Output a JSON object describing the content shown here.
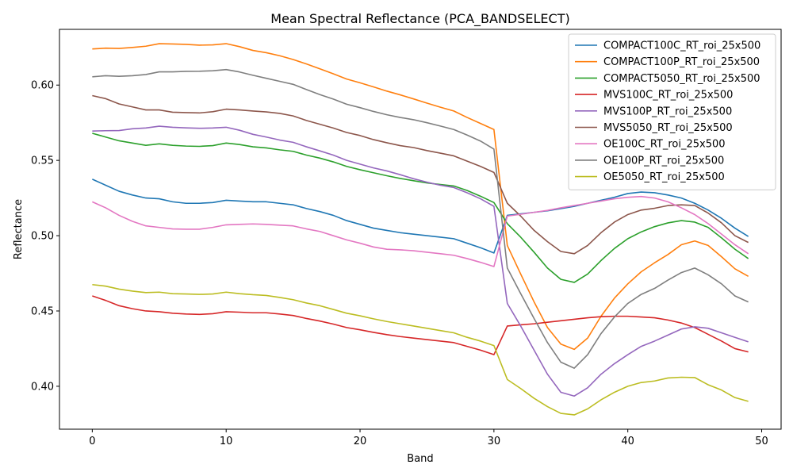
{
  "chart_data": {
    "type": "line",
    "title": "Mean Spectral Reflectance (PCA_BANDSELECT)",
    "xlabel": "Band",
    "ylabel": "Reflectance",
    "xlim": [
      -2.45,
      51.45
    ],
    "ylim": [
      0.3715,
      0.637
    ],
    "x_ticks": [
      0,
      10,
      20,
      30,
      40,
      50
    ],
    "x_tick_labels": [
      "0",
      "10",
      "20",
      "30",
      "40",
      "50"
    ],
    "y_ticks": [
      0.4,
      0.45,
      0.5,
      0.55,
      0.6
    ],
    "y_tick_labels": [
      "0.40",
      "0.45",
      "0.50",
      "0.55",
      "0.60"
    ],
    "grid": false,
    "legend_position": "top-right",
    "x": [
      0,
      1,
      2,
      3,
      4,
      5,
      6,
      7,
      8,
      9,
      10,
      11,
      12,
      13,
      14,
      15,
      16,
      17,
      18,
      19,
      20,
      21,
      22,
      23,
      24,
      25,
      26,
      27,
      28,
      29,
      30,
      31,
      32,
      33,
      34,
      35,
      36,
      37,
      38,
      39,
      40,
      41,
      42,
      43,
      44,
      45,
      46,
      47,
      48,
      49
    ],
    "series": [
      {
        "name": "COMPACT100C_RT_roi_25x500",
        "color": "#1f77b4",
        "values": [
          0.5375,
          0.5335,
          0.5295,
          0.527,
          0.525,
          0.5245,
          0.5225,
          0.5215,
          0.5215,
          0.522,
          0.5235,
          0.523,
          0.5225,
          0.5225,
          0.5215,
          0.5205,
          0.518,
          0.516,
          0.5135,
          0.51,
          0.5075,
          0.505,
          0.5035,
          0.502,
          0.501,
          0.5,
          0.499,
          0.498,
          0.495,
          0.492,
          0.4885,
          0.5135,
          0.5145,
          0.5155,
          0.5165,
          0.518,
          0.5195,
          0.5215,
          0.5235,
          0.5255,
          0.528,
          0.529,
          0.5285,
          0.527,
          0.525,
          0.5215,
          0.517,
          0.5115,
          0.505,
          0.4995
        ]
      },
      {
        "name": "COMPACT100P_RT_roi_25x500",
        "color": "#ff7f0e",
        "values": [
          0.624,
          0.6245,
          0.6243,
          0.625,
          0.6258,
          0.6275,
          0.6273,
          0.627,
          0.6265,
          0.6267,
          0.6275,
          0.6255,
          0.623,
          0.6215,
          0.6195,
          0.617,
          0.614,
          0.6108,
          0.6075,
          0.604,
          0.6015,
          0.5988,
          0.596,
          0.5935,
          0.5908,
          0.588,
          0.5853,
          0.5828,
          0.5785,
          0.5745,
          0.5705,
          0.4935,
          0.4745,
          0.456,
          0.439,
          0.428,
          0.4245,
          0.432,
          0.4465,
          0.4585,
          0.468,
          0.476,
          0.482,
          0.4875,
          0.494,
          0.4965,
          0.4935,
          0.486,
          0.478,
          0.473
        ]
      },
      {
        "name": "COMPACT5050_RT_roi_25x500",
        "color": "#2ca02c",
        "values": [
          0.568,
          0.5655,
          0.563,
          0.5615,
          0.56,
          0.561,
          0.56,
          0.5595,
          0.5593,
          0.5598,
          0.5615,
          0.5605,
          0.559,
          0.5583,
          0.557,
          0.556,
          0.5535,
          0.5515,
          0.549,
          0.546,
          0.5438,
          0.5418,
          0.5398,
          0.538,
          0.5365,
          0.535,
          0.534,
          0.533,
          0.53,
          0.5262,
          0.522,
          0.508,
          0.499,
          0.489,
          0.4785,
          0.471,
          0.469,
          0.4745,
          0.4835,
          0.4915,
          0.498,
          0.5025,
          0.506,
          0.5085,
          0.51,
          0.509,
          0.5055,
          0.4985,
          0.491,
          0.4848
        ]
      },
      {
        "name": "MVS100C_RT_roi_25x500",
        "color": "#d62728",
        "values": [
          0.46,
          0.457,
          0.4535,
          0.4515,
          0.45,
          0.4495,
          0.4485,
          0.448,
          0.4477,
          0.4482,
          0.4495,
          0.4492,
          0.4488,
          0.4488,
          0.448,
          0.447,
          0.445,
          0.4433,
          0.4413,
          0.439,
          0.4375,
          0.4358,
          0.4343,
          0.433,
          0.432,
          0.431,
          0.43,
          0.429,
          0.4265,
          0.424,
          0.421,
          0.44,
          0.4408,
          0.4415,
          0.4425,
          0.4435,
          0.4445,
          0.4455,
          0.4462,
          0.4465,
          0.4465,
          0.446,
          0.4455,
          0.444,
          0.442,
          0.439,
          0.4345,
          0.43,
          0.425,
          0.4228
        ]
      },
      {
        "name": "MVS100P_RT_roi_25x500",
        "color": "#9467bd",
        "values": [
          0.5695,
          0.5697,
          0.5698,
          0.571,
          0.5715,
          0.5727,
          0.572,
          0.5716,
          0.5713,
          0.5715,
          0.572,
          0.57,
          0.5673,
          0.5655,
          0.5635,
          0.562,
          0.559,
          0.5563,
          0.5535,
          0.55,
          0.5475,
          0.545,
          0.543,
          0.5405,
          0.5378,
          0.5355,
          0.5335,
          0.532,
          0.5285,
          0.5245,
          0.5195,
          0.455,
          0.44,
          0.424,
          0.408,
          0.396,
          0.3935,
          0.399,
          0.408,
          0.415,
          0.421,
          0.4265,
          0.43,
          0.434,
          0.438,
          0.4395,
          0.4385,
          0.4355,
          0.4325,
          0.4295
        ]
      },
      {
        "name": "MVS5050_RT_roi_25x500",
        "color": "#8c564b",
        "values": [
          0.593,
          0.591,
          0.5875,
          0.5855,
          0.5835,
          0.5835,
          0.582,
          0.5817,
          0.5815,
          0.5823,
          0.584,
          0.5835,
          0.5828,
          0.5822,
          0.5812,
          0.5795,
          0.5765,
          0.574,
          0.5715,
          0.5685,
          0.5665,
          0.5638,
          0.5617,
          0.5598,
          0.5585,
          0.5565,
          0.5548,
          0.553,
          0.5495,
          0.546,
          0.542,
          0.5215,
          0.513,
          0.5035,
          0.496,
          0.4895,
          0.488,
          0.4935,
          0.502,
          0.509,
          0.514,
          0.517,
          0.5182,
          0.52,
          0.5205,
          0.52,
          0.515,
          0.5085,
          0.5,
          0.4955
        ]
      },
      {
        "name": "OE100C_RT_roi_25x500",
        "color": "#e377c2",
        "values": [
          0.5225,
          0.5185,
          0.5135,
          0.5095,
          0.5065,
          0.5055,
          0.5045,
          0.5043,
          0.5043,
          0.5055,
          0.5072,
          0.5075,
          0.5078,
          0.5075,
          0.507,
          0.5065,
          0.5045,
          0.5028,
          0.5,
          0.4972,
          0.495,
          0.4925,
          0.491,
          0.4906,
          0.49,
          0.489,
          0.488,
          0.487,
          0.4848,
          0.4823,
          0.4795,
          0.513,
          0.5142,
          0.5155,
          0.5168,
          0.5185,
          0.52,
          0.5215,
          0.523,
          0.5245,
          0.5255,
          0.526,
          0.525,
          0.5225,
          0.5185,
          0.514,
          0.508,
          0.501,
          0.494,
          0.488
        ]
      },
      {
        "name": "OE100P_RT_roi_25x500",
        "color": "#7f7f7f",
        "values": [
          0.6055,
          0.6062,
          0.6058,
          0.6062,
          0.607,
          0.6088,
          0.6088,
          0.6091,
          0.6092,
          0.6095,
          0.6103,
          0.6087,
          0.6065,
          0.6045,
          0.6025,
          0.6005,
          0.597,
          0.5937,
          0.5907,
          0.5873,
          0.585,
          0.5825,
          0.5803,
          0.5785,
          0.577,
          0.575,
          0.5728,
          0.5705,
          0.5668,
          0.5628,
          0.5575,
          0.4785,
          0.4615,
          0.445,
          0.429,
          0.416,
          0.412,
          0.421,
          0.435,
          0.446,
          0.455,
          0.461,
          0.465,
          0.4705,
          0.4755,
          0.4785,
          0.474,
          0.468,
          0.46,
          0.456
        ]
      },
      {
        "name": "OE5050_RT_roi_25x500",
        "color": "#bcbd22",
        "values": [
          0.4675,
          0.4665,
          0.4645,
          0.4632,
          0.4622,
          0.4625,
          0.4615,
          0.4613,
          0.461,
          0.4613,
          0.4625,
          0.4615,
          0.4608,
          0.4603,
          0.459,
          0.4575,
          0.4553,
          0.4535,
          0.451,
          0.4485,
          0.4468,
          0.4448,
          0.443,
          0.4415,
          0.44,
          0.4385,
          0.437,
          0.4355,
          0.4325,
          0.43,
          0.427,
          0.4045,
          0.3985,
          0.392,
          0.3865,
          0.382,
          0.381,
          0.385,
          0.391,
          0.396,
          0.4,
          0.4025,
          0.4035,
          0.4055,
          0.406,
          0.4058,
          0.401,
          0.3975,
          0.3925,
          0.39
        ]
      }
    ]
  }
}
